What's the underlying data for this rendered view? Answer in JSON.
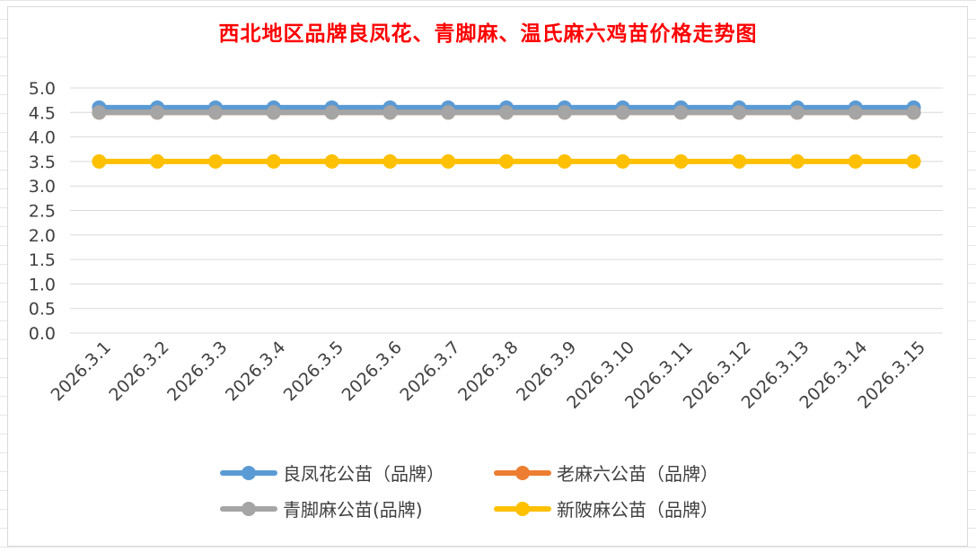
{
  "chart_data": {
    "type": "line",
    "title": "西北地区品牌良凤花、青脚麻、温氏麻六鸡苗价格走势图",
    "categories": [
      "2026.3.1",
      "2026.3.2",
      "2026.3.3",
      "2026.3.4",
      "2026.3.5",
      "2026.3.6",
      "2026.3.7",
      "2026.3.8",
      "2026.3.9",
      "2026.3.10",
      "2026.3.11",
      "2026.3.12",
      "2026.3.13",
      "2026.3.14",
      "2026.3.15"
    ],
    "ylim": [
      0,
      5
    ],
    "yticks": [
      "0.0",
      "0.5",
      "1.0",
      "1.5",
      "2.0",
      "2.5",
      "3.0",
      "3.5",
      "4.0",
      "4.5",
      "5.0"
    ],
    "grid": true,
    "legend_position": "bottom",
    "series": [
      {
        "name": "良凤花公苗（品牌）",
        "color": "#5b9bd5",
        "values": [
          4.6,
          4.6,
          4.6,
          4.6,
          4.6,
          4.6,
          4.6,
          4.6,
          4.6,
          4.6,
          4.6,
          4.6,
          4.6,
          4.6,
          4.6
        ]
      },
      {
        "name": "老麻六公苗（品牌）",
        "color": "#ed7d31",
        "values": [
          4.5,
          4.5,
          4.5,
          4.5,
          4.5,
          4.5,
          4.5,
          4.5,
          4.5,
          4.5,
          4.5,
          4.5,
          4.5,
          4.5,
          4.5
        ]
      },
      {
        "name": "青脚麻公苗(品牌)",
        "color": "#a5a5a5",
        "values": [
          4.5,
          4.5,
          4.5,
          4.5,
          4.5,
          4.5,
          4.5,
          4.5,
          4.5,
          4.5,
          4.5,
          4.5,
          4.5,
          4.5,
          4.5
        ]
      },
      {
        "name": "新陂麻公苗（品牌）",
        "color": "#ffc000",
        "values": [
          3.5,
          3.5,
          3.5,
          3.5,
          3.5,
          3.5,
          3.5,
          3.5,
          3.5,
          3.5,
          3.5,
          3.5,
          3.5,
          3.5,
          3.5
        ]
      }
    ]
  }
}
